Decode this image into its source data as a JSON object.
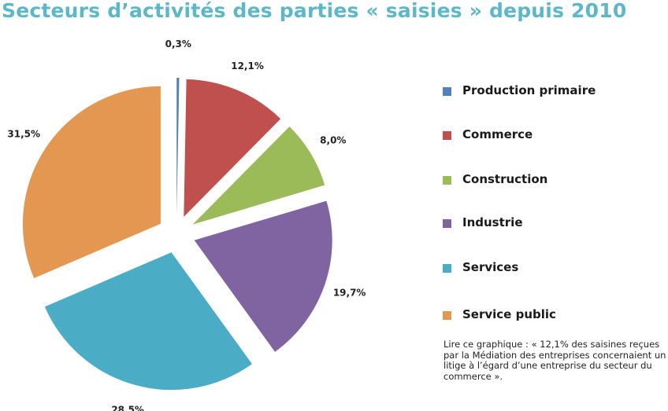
{
  "title": "Secteurs d’activités des parties « saisies » depuis 2010",
  "chart_data": {
    "type": "pie",
    "exploded": true,
    "categories": [
      "Production primaire",
      "Commerce",
      "Construction",
      "Industrie",
      "Services",
      "Service public"
    ],
    "values": [
      0.3,
      12.1,
      8.0,
      19.7,
      28.5,
      31.5
    ],
    "value_labels": [
      "0,3%",
      "12,1%",
      "8,0%",
      "19,7%",
      "28,5%",
      "31,5%"
    ],
    "colors": [
      "#4f81bd",
      "#c0504d",
      "#9bbb59",
      "#8064a2",
      "#4bacc6",
      "#e39750"
    ],
    "legend_position": "right"
  },
  "note": "Lire ce graphique : « 12,1% des saisines reçues par la Médiation des entreprises concernaient un litige à l’égard d’une entreprise du secteur du commerce »."
}
